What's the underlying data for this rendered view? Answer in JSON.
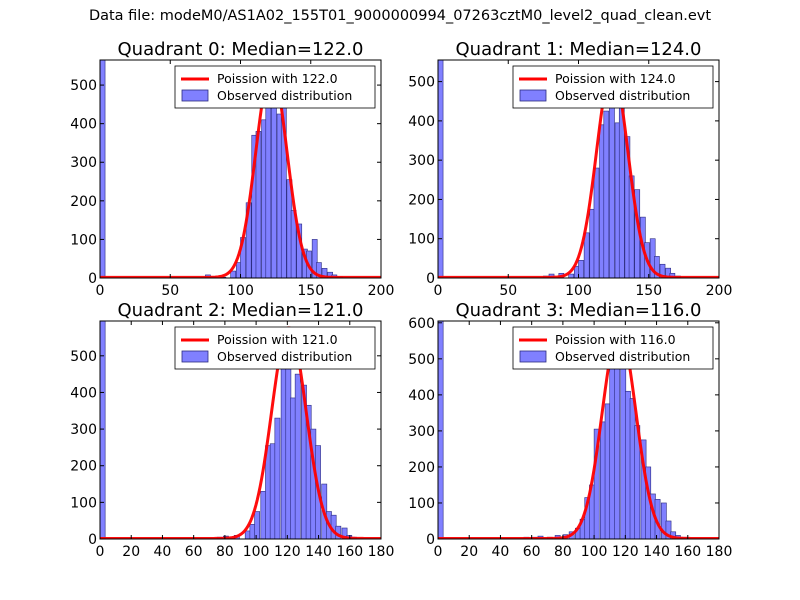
{
  "figure_title": "Data file: modeM0/AS1A02_155T01_9000000994_07263cztM0_level2_quad_clean.evt",
  "colors": {
    "poisson_line": "#ff0000",
    "bar_fill": "#8080ff",
    "bar_edge": "#2a2a80"
  },
  "chart_data": [
    {
      "type": "bar",
      "title": "Quadrant 0: Median=122.0",
      "legend": [
        "Poission with 122.0",
        "Observed distribution"
      ],
      "legend_position": "top-right",
      "xlim": [
        0,
        200
      ],
      "ylim": [
        0,
        565
      ],
      "xticks": [
        0,
        50,
        100,
        150,
        200
      ],
      "xtick_labels": [
        "0",
        "50",
        "100",
        "150",
        "200"
      ],
      "yticks": [
        0,
        100,
        200,
        300,
        400,
        500
      ],
      "ytick_labels": [
        "0",
        "100",
        "200",
        "300",
        "400",
        "500"
      ],
      "bin_width": 3.6,
      "bins": [
        [
          0,
          565
        ],
        [
          75,
          8
        ],
        [
          79,
          4
        ],
        [
          86,
          2
        ],
        [
          93,
          18
        ],
        [
          97,
          40
        ],
        [
          100,
          105
        ],
        [
          104,
          195
        ],
        [
          108,
          370
        ],
        [
          111,
          380
        ],
        [
          115,
          410
        ],
        [
          118,
          470
        ],
        [
          122,
          520
        ],
        [
          126,
          425
        ],
        [
          129,
          490
        ],
        [
          133,
          255
        ],
        [
          136,
          175
        ],
        [
          140,
          140
        ],
        [
          144,
          75
        ],
        [
          147,
          70
        ],
        [
          151,
          100
        ],
        [
          154,
          40
        ],
        [
          158,
          25
        ],
        [
          162,
          15
        ],
        [
          165,
          8
        ],
        [
          169,
          3
        ]
      ],
      "poisson_mean": 122.0,
      "poisson_peak": 540
    },
    {
      "type": "bar",
      "title": "Quadrant 1: Median=124.0",
      "legend": [
        "Poission with 124.0",
        "Observed distribution"
      ],
      "legend_position": "top-right",
      "xlim": [
        0,
        200
      ],
      "ylim": [
        0,
        555
      ],
      "xticks": [
        0,
        50,
        100,
        150,
        200
      ],
      "xtick_labels": [
        "0",
        "50",
        "100",
        "150",
        "200"
      ],
      "yticks": [
        0,
        100,
        200,
        300,
        400,
        500
      ],
      "ytick_labels": [
        "0",
        "100",
        "200",
        "300",
        "400",
        "500"
      ],
      "bin_width": 3.6,
      "bins": [
        [
          0,
          555
        ],
        [
          75,
          5
        ],
        [
          79,
          10
        ],
        [
          86,
          12
        ],
        [
          93,
          10
        ],
        [
          97,
          30
        ],
        [
          100,
          45
        ],
        [
          104,
          115
        ],
        [
          108,
          175
        ],
        [
          111,
          280
        ],
        [
          115,
          390
        ],
        [
          118,
          425
        ],
        [
          122,
          510
        ],
        [
          126,
          395
        ],
        [
          129,
          440
        ],
        [
          133,
          360
        ],
        [
          136,
          260
        ],
        [
          140,
          225
        ],
        [
          144,
          155
        ],
        [
          147,
          90
        ],
        [
          151,
          100
        ],
        [
          154,
          55
        ],
        [
          158,
          35
        ],
        [
          162,
          25
        ],
        [
          165,
          12
        ],
        [
          169,
          5
        ]
      ],
      "poisson_mean": 124.0,
      "poisson_peak": 530
    },
    {
      "type": "bar",
      "title": "Quadrant 2: Median=121.0",
      "legend": [
        "Poission with 121.0",
        "Observed distribution"
      ],
      "legend_position": "top-right",
      "xlim": [
        0,
        180
      ],
      "ylim": [
        0,
        595
      ],
      "xticks": [
        0,
        20,
        40,
        60,
        80,
        100,
        120,
        140,
        160,
        180
      ],
      "xtick_labels": [
        "0",
        "20",
        "40",
        "60",
        "80",
        "100",
        "120",
        "140",
        "160",
        "180"
      ],
      "yticks": [
        0,
        100,
        200,
        300,
        400,
        500
      ],
      "ytick_labels": [
        "0",
        "100",
        "200",
        "300",
        "400",
        "500"
      ],
      "bin_width": 3.3,
      "bins": [
        [
          0,
          595
        ],
        [
          75,
          5
        ],
        [
          79,
          8
        ],
        [
          86,
          10
        ],
        [
          93,
          22
        ],
        [
          96,
          40
        ],
        [
          99,
          75
        ],
        [
          103,
          130
        ],
        [
          106,
          255
        ],
        [
          109,
          260
        ],
        [
          112,
          330
        ],
        [
          116,
          480
        ],
        [
          119,
          520
        ],
        [
          122,
          385
        ],
        [
          125,
          450
        ],
        [
          129,
          420
        ],
        [
          132,
          365
        ],
        [
          135,
          300
        ],
        [
          138,
          255
        ],
        [
          142,
          150
        ],
        [
          145,
          75
        ],
        [
          148,
          65
        ],
        [
          151,
          35
        ],
        [
          155,
          30
        ],
        [
          158,
          10
        ],
        [
          161,
          5
        ]
      ],
      "poisson_mean": 121.0,
      "poisson_peak": 575
    },
    {
      "type": "bar",
      "title": "Quadrant 3: Median=116.0",
      "legend": [
        "Poission with 116.0",
        "Observed distribution"
      ],
      "legend_position": "top-right",
      "xlim": [
        0,
        180
      ],
      "ylim": [
        0,
        605
      ],
      "xticks": [
        0,
        20,
        40,
        60,
        80,
        100,
        120,
        140,
        160,
        180
      ],
      "xtick_labels": [
        "0",
        "20",
        "40",
        "60",
        "80",
        "100",
        "120",
        "140",
        "160",
        "180"
      ],
      "yticks": [
        0,
        100,
        200,
        300,
        400,
        500,
        600
      ],
      "ytick_labels": [
        "0",
        "100",
        "200",
        "300",
        "400",
        "500",
        "600"
      ],
      "bin_width": 3.3,
      "bins": [
        [
          0,
          605
        ],
        [
          55,
          5
        ],
        [
          60,
          5
        ],
        [
          64,
          8
        ],
        [
          70,
          5
        ],
        [
          75,
          10
        ],
        [
          80,
          12
        ],
        [
          84,
          20
        ],
        [
          88,
          30
        ],
        [
          91,
          55
        ],
        [
          94,
          115
        ],
        [
          97,
          150
        ],
        [
          100,
          305
        ],
        [
          104,
          325
        ],
        [
          107,
          375
        ],
        [
          110,
          510
        ],
        [
          113,
          545
        ],
        [
          117,
          475
        ],
        [
          120,
          410
        ],
        [
          123,
          390
        ],
        [
          126,
          315
        ],
        [
          130,
          275
        ],
        [
          133,
          200
        ],
        [
          136,
          125
        ],
        [
          139,
          110
        ],
        [
          143,
          100
        ],
        [
          146,
          50
        ],
        [
          149,
          20
        ],
        [
          152,
          10
        ],
        [
          156,
          5
        ]
      ],
      "poisson_mean": 116.0,
      "poisson_peak": 580
    }
  ]
}
